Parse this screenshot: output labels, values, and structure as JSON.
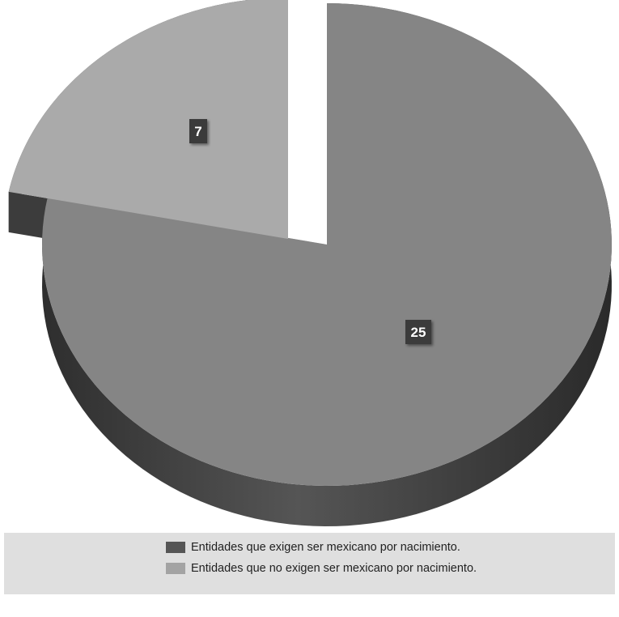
{
  "chart_data": {
    "type": "pie",
    "slices": [
      {
        "label": "Entidades que exigen ser mexicano por nacimiento.",
        "value": 25,
        "data_label": "25",
        "color": "#858585",
        "side_color": "#3a3a3a",
        "legend_color": "#555555"
      },
      {
        "label": "Entidades que no exigen ser mexicano por nacimiento.",
        "value": 7,
        "data_label": "7",
        "color": "#aaaaaa",
        "side_color": "#444444",
        "legend_color": "#a3a3a3"
      }
    ],
    "exploded_slice": 1,
    "style": "3d",
    "legend_position": "bottom"
  }
}
